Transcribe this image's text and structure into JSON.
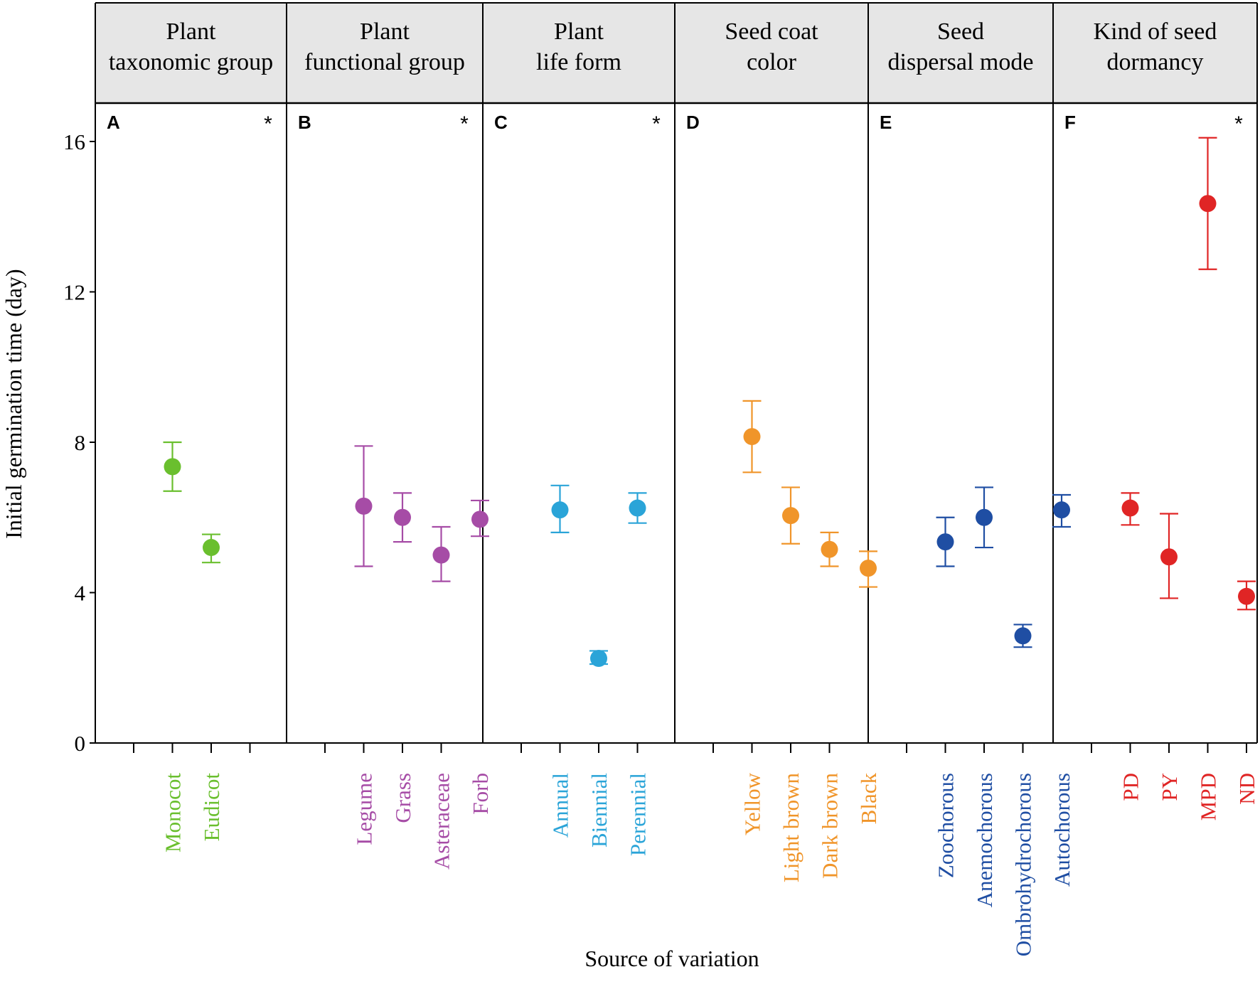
{
  "chart_data": {
    "type": "scatter",
    "subtype": "point-with-error-bars",
    "ylabel": "Initial germination time (day)",
    "xlabel": "Source of variation",
    "ylim": [
      0,
      17.3
    ],
    "yticks": [
      0,
      4,
      8,
      12,
      16
    ],
    "panels": [
      {
        "letter": "A",
        "header": [
          "Plant",
          "taxonomic group"
        ],
        "significant": "*",
        "color": "#6abf2e",
        "slots": 4,
        "points": [
          {
            "label": "Monocot",
            "slot": 1,
            "mean": 7.35,
            "lower": 6.7,
            "upper": 8.0
          },
          {
            "label": "Eudicot",
            "slot": 2,
            "mean": 5.2,
            "lower": 4.8,
            "upper": 5.55
          }
        ]
      },
      {
        "letter": "B",
        "header": [
          "Plant",
          "functional group"
        ],
        "significant": "*",
        "color": "#a64ca6",
        "slots": 5,
        "points": [
          {
            "label": "Legume",
            "slot": 1,
            "mean": 6.3,
            "lower": 4.7,
            "upper": 7.9
          },
          {
            "label": "Grass",
            "slot": 2,
            "mean": 6.0,
            "lower": 5.35,
            "upper": 6.65
          },
          {
            "label": "Asteraceae",
            "slot": 3,
            "mean": 5.0,
            "lower": 4.3,
            "upper": 5.75
          },
          {
            "label": "Forb",
            "slot": 4,
            "mean": 5.95,
            "lower": 5.5,
            "upper": 6.45
          }
        ]
      },
      {
        "letter": "C",
        "header": [
          "Plant",
          "life form"
        ],
        "significant": "*",
        "color": "#2aa4d8",
        "slots": 4,
        "points": [
          {
            "label": "Annual",
            "slot": 1,
            "mean": 6.2,
            "lower": 5.6,
            "upper": 6.85
          },
          {
            "label": "Biennial",
            "slot": 2,
            "mean": 2.25,
            "lower": 2.1,
            "upper": 2.45
          },
          {
            "label": "Perennial",
            "slot": 3,
            "mean": 6.25,
            "lower": 5.85,
            "upper": 6.65
          }
        ]
      },
      {
        "letter": "D",
        "header": [
          "Seed coat",
          "color"
        ],
        "significant": "",
        "color": "#f0952a",
        "slots": 5,
        "points": [
          {
            "label": "Yellow",
            "slot": 1,
            "mean": 8.15,
            "lower": 7.2,
            "upper": 9.1
          },
          {
            "label": "Light  brown",
            "slot": 2,
            "mean": 6.05,
            "lower": 5.3,
            "upper": 6.8
          },
          {
            "label": "Dark brown",
            "slot": 3,
            "mean": 5.15,
            "lower": 4.7,
            "upper": 5.6
          },
          {
            "label": "Black",
            "slot": 4,
            "mean": 4.65,
            "lower": 4.15,
            "upper": 5.1
          }
        ]
      },
      {
        "letter": "E",
        "header": [
          "Seed",
          "dispersal mode"
        ],
        "significant": "",
        "color": "#1f4ea3",
        "slots": 5,
        "points": [
          {
            "label": "Zoochorous",
            "slot": 1,
            "mean": 5.35,
            "lower": 4.7,
            "upper": 6.0
          },
          {
            "label": "Anemochorous",
            "slot": 2,
            "mean": 6.0,
            "lower": 5.2,
            "upper": 6.8
          },
          {
            "label": "Ombrohydrochorous",
            "slot": 3,
            "mean": 2.85,
            "lower": 2.55,
            "upper": 3.15
          },
          {
            "label": "Autochorous",
            "slot": 4,
            "mean": 6.2,
            "lower": 5.75,
            "upper": 6.6
          }
        ]
      },
      {
        "letter": "F",
        "header": [
          "Kind of seed",
          "dormancy"
        ],
        "significant": "*",
        "color": "#e02525",
        "slots": 5,
        "points": [
          {
            "label": "PD",
            "slot": 1,
            "mean": 6.25,
            "lower": 5.8,
            "upper": 6.65
          },
          {
            "label": "PY",
            "slot": 2,
            "mean": 4.95,
            "lower": 3.85,
            "upper": 6.1
          },
          {
            "label": "MPD",
            "slot": 3,
            "mean": 14.35,
            "lower": 12.6,
            "upper": 16.1
          },
          {
            "label": "ND",
            "slot": 4,
            "mean": 3.9,
            "lower": 3.55,
            "upper": 4.3
          }
        ]
      }
    ]
  }
}
